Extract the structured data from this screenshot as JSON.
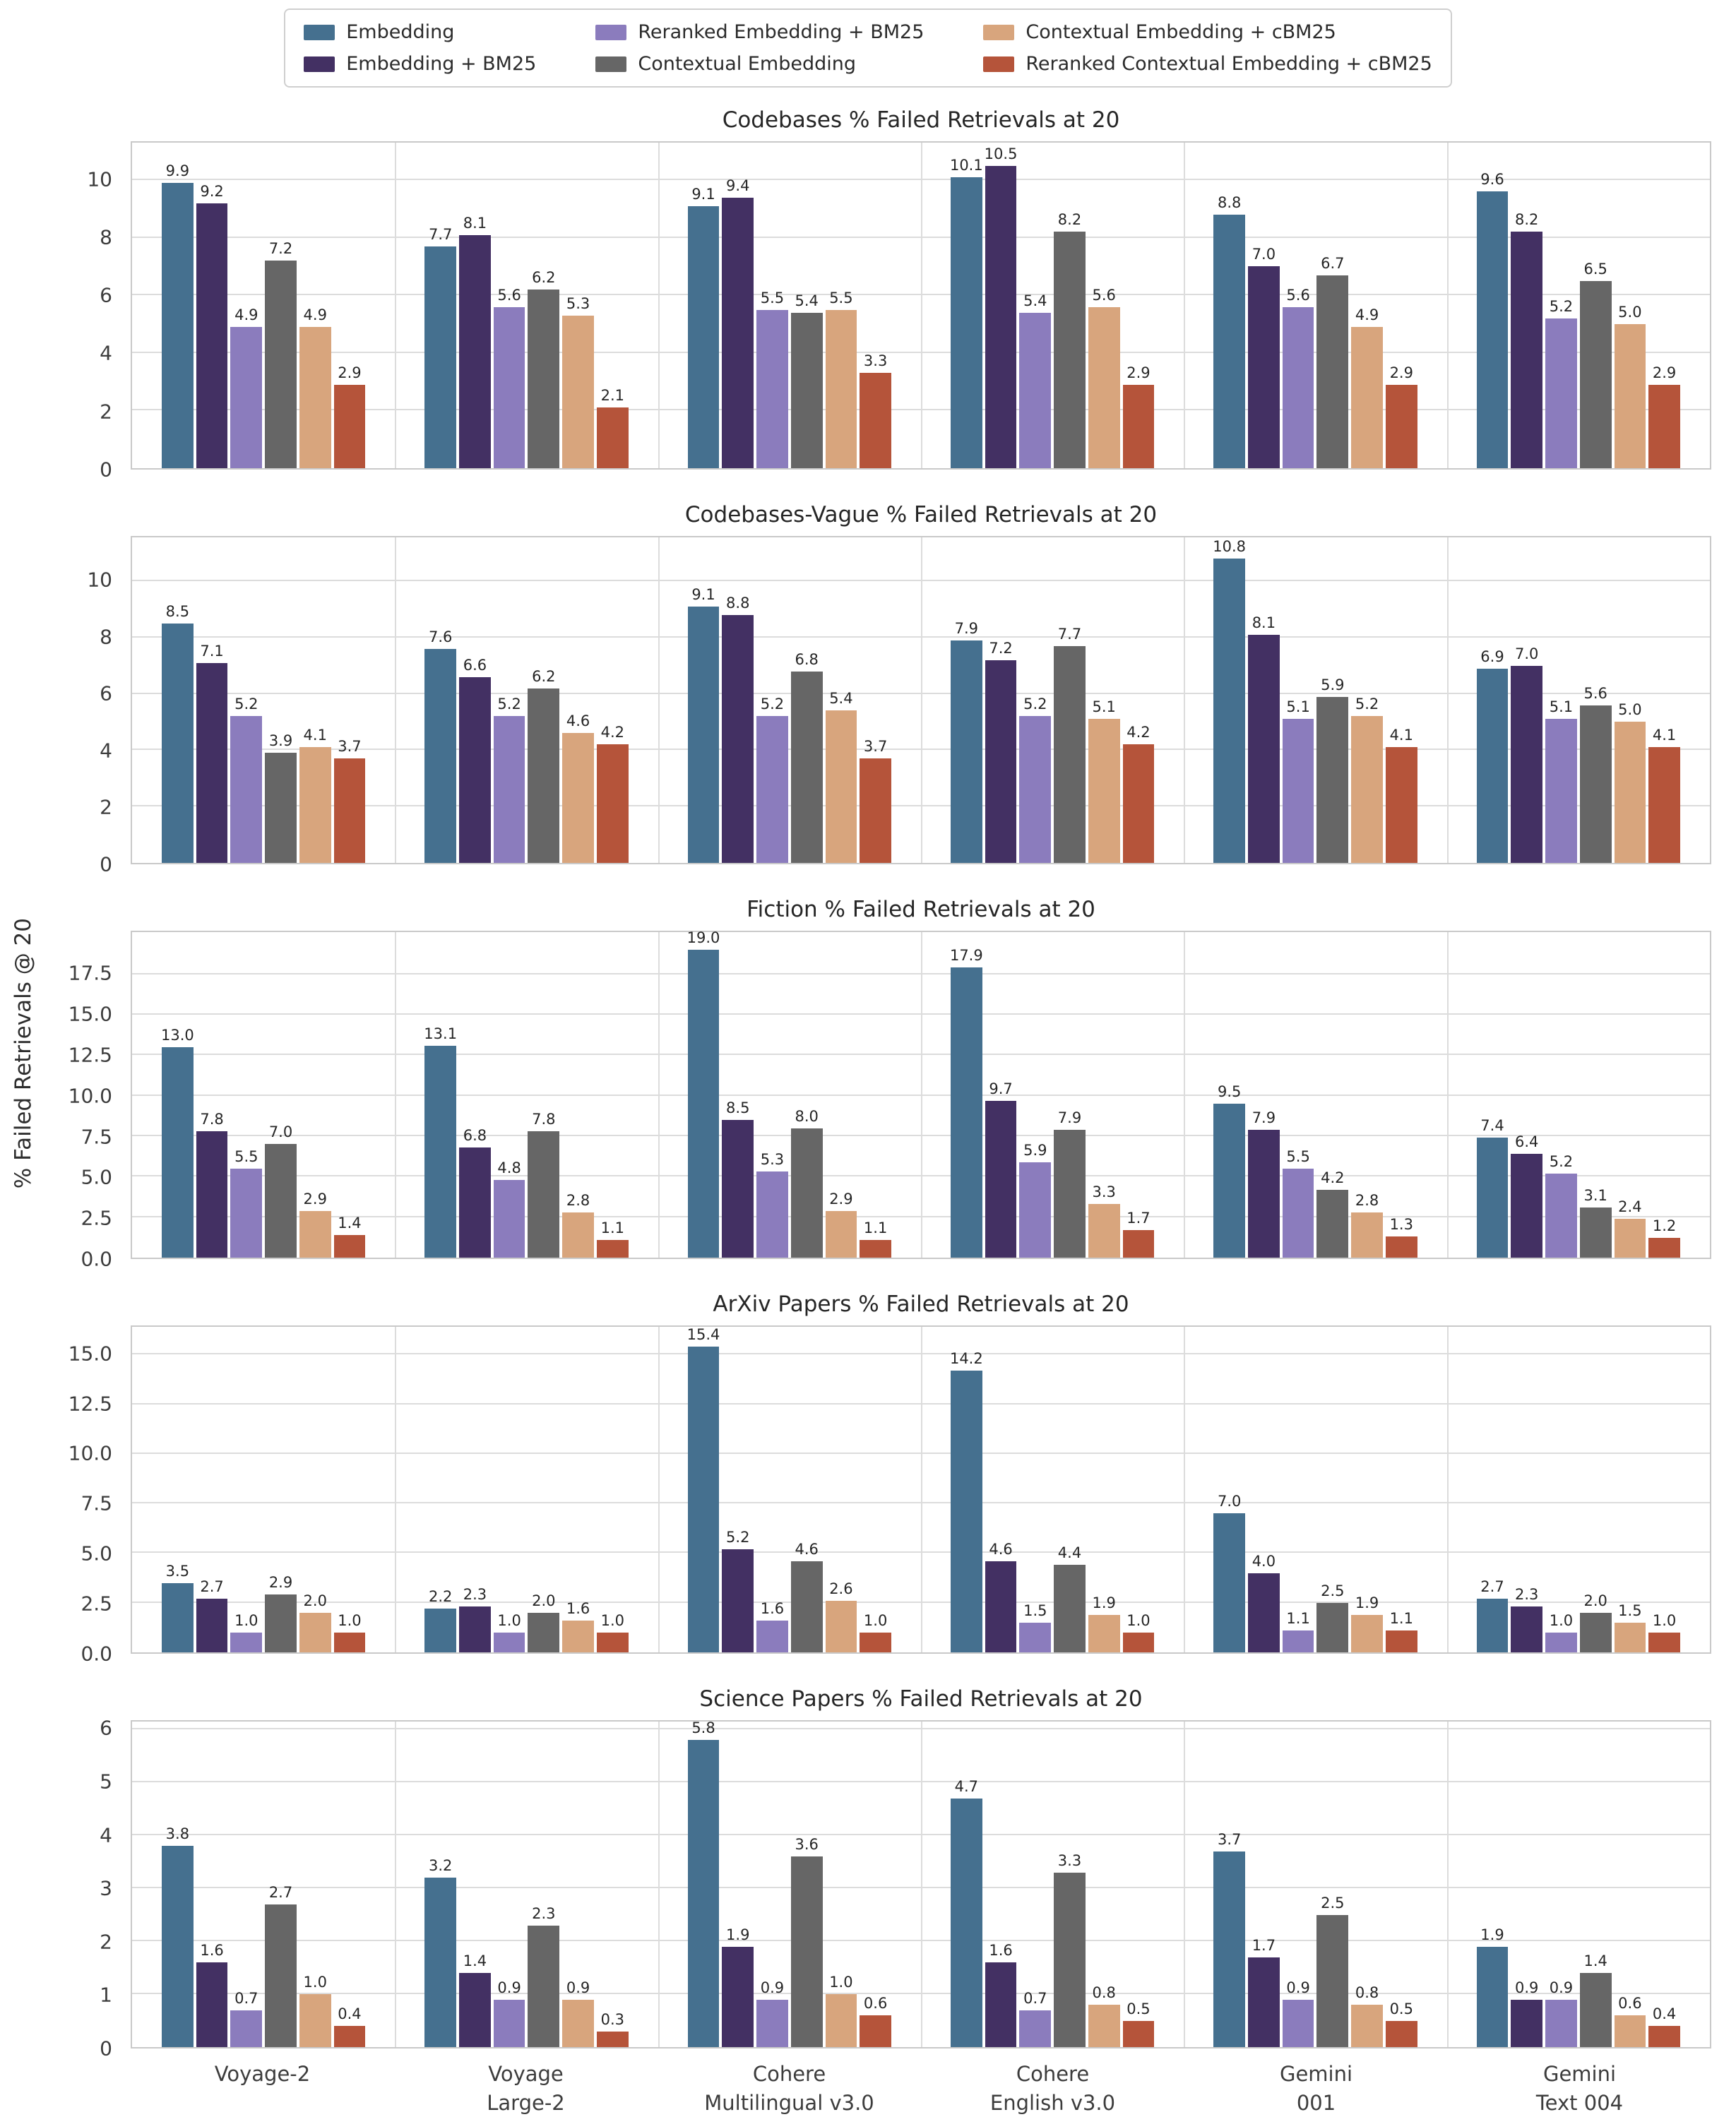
{
  "figure": {
    "ylabel": "% Failed Retrievals @ 20"
  },
  "series": [
    {
      "name": "Embedding",
      "color": "#45708F"
    },
    {
      "name": "Embedding + BM25",
      "color": "#433063"
    },
    {
      "name": "Reranked Embedding + BM25",
      "color": "#8B7CBD"
    },
    {
      "name": "Contextual Embedding",
      "color": "#666666"
    },
    {
      "name": "Contextual Embedding + cBM25",
      "color": "#D8A57D"
    },
    {
      "name": "Reranked Contextual Embedding + cBM25",
      "color": "#B5543A"
    }
  ],
  "categories": [
    {
      "lines": [
        "Voyage-2"
      ]
    },
    {
      "lines": [
        "Voyage",
        "Large-2"
      ]
    },
    {
      "lines": [
        "Cohere",
        "Multilingual v3.0"
      ]
    },
    {
      "lines": [
        "Cohere",
        "English v3.0"
      ]
    },
    {
      "lines": [
        "Gemini",
        "001"
      ]
    },
    {
      "lines": [
        "Gemini",
        "Text 004"
      ]
    }
  ],
  "chart_data": [
    {
      "type": "bar",
      "title": "Codebases % Failed Retrievals at 20",
      "ylabel": "% Failed Retrievals @ 20",
      "grid": true,
      "legend_position": "top-center-shared",
      "ylim": [
        0,
        11.3
      ],
      "yticks": [
        0,
        2,
        4,
        6,
        8,
        10
      ],
      "ytick_labels": [
        "0",
        "2",
        "4",
        "6",
        "8",
        "10"
      ],
      "categories": [
        "Voyage-2",
        "Voyage Large-2",
        "Cohere Multilingual v3.0",
        "Cohere English v3.0",
        "Gemini 001",
        "Gemini Text 004"
      ],
      "values_by_group": [
        [
          9.9,
          9.2,
          4.9,
          7.2,
          4.9,
          2.9
        ],
        [
          7.7,
          8.1,
          5.6,
          6.2,
          5.3,
          2.1
        ],
        [
          9.1,
          9.4,
          5.5,
          5.4,
          5.5,
          3.3
        ],
        [
          10.1,
          10.5,
          5.4,
          8.2,
          5.6,
          2.9
        ],
        [
          8.8,
          7.0,
          5.6,
          6.7,
          4.9,
          2.9
        ],
        [
          9.6,
          8.2,
          5.2,
          6.5,
          5.0,
          2.9
        ]
      ]
    },
    {
      "type": "bar",
      "title": "Codebases-Vague % Failed Retrievals at 20",
      "grid": true,
      "ylim": [
        0,
        11.55
      ],
      "yticks": [
        0,
        2,
        4,
        6,
        8,
        10
      ],
      "ytick_labels": [
        "0",
        "2",
        "4",
        "6",
        "8",
        "10"
      ],
      "categories": [
        "Voyage-2",
        "Voyage Large-2",
        "Cohere Multilingual v3.0",
        "Cohere English v3.0",
        "Gemini 001",
        "Gemini Text 004"
      ],
      "values_by_group": [
        [
          8.5,
          7.1,
          5.2,
          3.9,
          4.1,
          3.7
        ],
        [
          7.6,
          6.6,
          5.2,
          6.2,
          4.6,
          4.2
        ],
        [
          9.1,
          8.8,
          5.2,
          6.8,
          5.4,
          3.7
        ],
        [
          7.9,
          7.2,
          5.2,
          7.7,
          5.1,
          4.2
        ],
        [
          10.8,
          8.1,
          5.1,
          5.9,
          5.2,
          4.1
        ],
        [
          6.9,
          7.0,
          5.1,
          5.6,
          5.0,
          4.1
        ]
      ]
    },
    {
      "type": "bar",
      "title": "Fiction % Failed Retrievals at 20",
      "grid": true,
      "ylim": [
        0,
        20.1
      ],
      "yticks": [
        0,
        2.5,
        5,
        7.5,
        10,
        12.5,
        15,
        17.5
      ],
      "ytick_labels": [
        "0.0",
        "2.5",
        "5.0",
        "7.5",
        "10.0",
        "12.5",
        "15.0",
        "17.5"
      ],
      "categories": [
        "Voyage-2",
        "Voyage Large-2",
        "Cohere Multilingual v3.0",
        "Cohere English v3.0",
        "Gemini 001",
        "Gemini Text 004"
      ],
      "values_by_group": [
        [
          13.0,
          7.8,
          5.5,
          7.0,
          2.9,
          1.4
        ],
        [
          13.1,
          6.8,
          4.8,
          7.8,
          2.8,
          1.1
        ],
        [
          19.0,
          8.5,
          5.3,
          8.0,
          2.9,
          1.1
        ],
        [
          17.9,
          9.7,
          5.9,
          7.9,
          3.3,
          1.7
        ],
        [
          9.5,
          7.9,
          5.5,
          4.2,
          2.8,
          1.3
        ],
        [
          7.4,
          6.4,
          5.2,
          3.1,
          2.4,
          1.2
        ]
      ]
    },
    {
      "type": "bar",
      "title": "ArXiv Papers % Failed Retrievals at 20",
      "grid": true,
      "ylim": [
        0,
        16.4
      ],
      "yticks": [
        0,
        2.5,
        5,
        7.5,
        10,
        12.5,
        15
      ],
      "ytick_labels": [
        "0.0",
        "2.5",
        "5.0",
        "7.5",
        "10.0",
        "12.5",
        "15.0"
      ],
      "categories": [
        "Voyage-2",
        "Voyage Large-2",
        "Cohere Multilingual v3.0",
        "Cohere English v3.0",
        "Gemini 001",
        "Gemini Text 004"
      ],
      "values_by_group": [
        [
          3.5,
          2.7,
          1.0,
          2.9,
          2.0,
          1.0
        ],
        [
          2.2,
          2.3,
          1.0,
          2.0,
          1.6,
          1.0
        ],
        [
          15.4,
          5.2,
          1.6,
          4.6,
          2.6,
          1.0
        ],
        [
          14.2,
          4.6,
          1.5,
          4.4,
          1.9,
          1.0
        ],
        [
          7.0,
          4.0,
          1.1,
          2.5,
          1.9,
          1.1
        ],
        [
          2.7,
          2.3,
          1.0,
          2.0,
          1.5,
          1.0
        ]
      ]
    },
    {
      "type": "bar",
      "title": "Science Papers % Failed Retrievals at 20",
      "grid": true,
      "ylim": [
        0,
        6.15
      ],
      "yticks": [
        0,
        1,
        2,
        3,
        4,
        5,
        6
      ],
      "ytick_labels": [
        "0",
        "1",
        "2",
        "3",
        "4",
        "5",
        "6"
      ],
      "categories": [
        "Voyage-2",
        "Voyage Large-2",
        "Cohere Multilingual v3.0",
        "Cohere English v3.0",
        "Gemini 001",
        "Gemini Text 004"
      ],
      "values_by_group": [
        [
          3.8,
          1.6,
          0.7,
          2.7,
          1.0,
          0.4
        ],
        [
          3.2,
          1.4,
          0.9,
          2.3,
          0.9,
          0.3
        ],
        [
          5.8,
          1.9,
          0.9,
          3.6,
          1.0,
          0.6
        ],
        [
          4.7,
          1.6,
          0.7,
          3.3,
          0.8,
          0.5
        ],
        [
          3.7,
          1.7,
          0.9,
          2.5,
          0.8,
          0.5
        ],
        [
          1.9,
          0.9,
          0.9,
          1.4,
          0.6,
          0.4
        ]
      ]
    }
  ]
}
